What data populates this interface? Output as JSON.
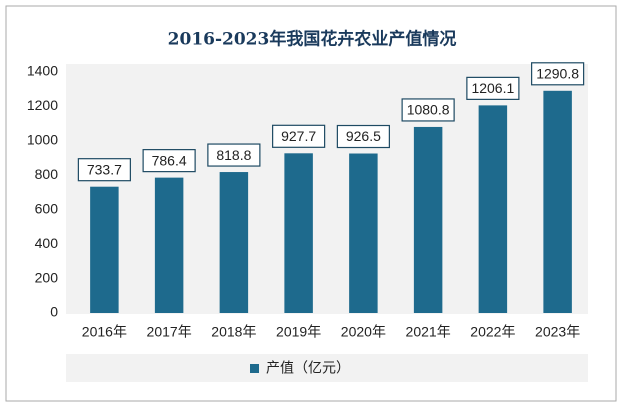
{
  "chart_data": {
    "type": "bar",
    "title": "2016-2023年我国花卉农业产值情况",
    "categories": [
      "2016年",
      "2017年",
      "2018年",
      "2019年",
      "2020年",
      "2021年",
      "2022年",
      "2023年"
    ],
    "series": [
      {
        "name": "产值（亿元）",
        "color": "#1e6a8d",
        "values": [
          733.7,
          786.4,
          818.8,
          927.7,
          926.5,
          1080.8,
          1206.1,
          1290.8
        ]
      }
    ],
    "ylim": [
      0,
      1400
    ],
    "yticks": [
      0,
      200,
      400,
      600,
      800,
      1000,
      1200,
      1400
    ]
  }
}
